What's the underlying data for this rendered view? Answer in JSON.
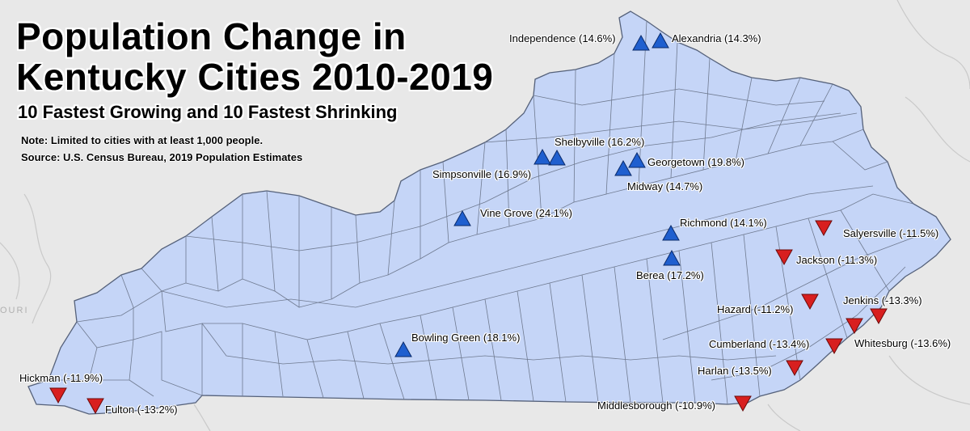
{
  "title_line1": "Population Change in",
  "title_line2": "Kentucky Cities 2010-2019",
  "subtitle": "10 Fastest Growing and 10 Fastest Shrinking",
  "note": "Note:  Limited to cities with at least 1,000 people.",
  "source": "Source:  U.S. Census Bureau, 2019 Population Estimates",
  "background_label": "OURI",
  "colors": {
    "state_fill": "#c5d5f7",
    "county_line": "#6f7a90",
    "background": "#e8e8e8",
    "growing": "#1f5fcf",
    "shrinking": "#d81f1f"
  },
  "growing_cities": [
    {
      "label": "Independence (14.6%)",
      "icon": "triangle-up-icon"
    },
    {
      "label": "Alexandria (14.3%)",
      "icon": "triangle-up-icon"
    },
    {
      "label": "Shelbyville (16.2%)",
      "icon": "triangle-up-icon"
    },
    {
      "label": "Simpsonville (16.9%)",
      "icon": "triangle-up-icon"
    },
    {
      "label": "Georgetown (19.8%)",
      "icon": "triangle-up-icon"
    },
    {
      "label": "Midway (14.7%)",
      "icon": "triangle-up-icon"
    },
    {
      "label": "Vine Grove (24.1%)",
      "icon": "triangle-up-icon"
    },
    {
      "label": "Richmond (14.1%)",
      "icon": "triangle-up-icon"
    },
    {
      "label": "Berea (17.2%)",
      "icon": "triangle-up-icon"
    },
    {
      "label": "Bowling Green (18.1%)",
      "icon": "triangle-up-icon"
    }
  ],
  "shrinking_cities": [
    {
      "label": "Salyersville (-11.5%)",
      "icon": "triangle-down-icon"
    },
    {
      "label": "Jackson (-11.3%)",
      "icon": "triangle-down-icon"
    },
    {
      "label": "Jenkins (-13.3%)",
      "icon": "triangle-down-icon"
    },
    {
      "label": "Hazard (-11.2%)",
      "icon": "triangle-down-icon"
    },
    {
      "label": "Whitesburg (-13.6%)",
      "icon": "triangle-down-icon"
    },
    {
      "label": "Cumberland (-13.4%)",
      "icon": "triangle-down-icon"
    },
    {
      "label": "Harlan (-13.5%)",
      "icon": "triangle-down-icon"
    },
    {
      "label": "Middlesborough (-10.9%)",
      "icon": "triangle-down-icon"
    },
    {
      "label": "Hickman (-11.9%)",
      "icon": "triangle-down-icon"
    },
    {
      "label": "Fulton (-13.2%)",
      "icon": "triangle-down-icon"
    }
  ]
}
